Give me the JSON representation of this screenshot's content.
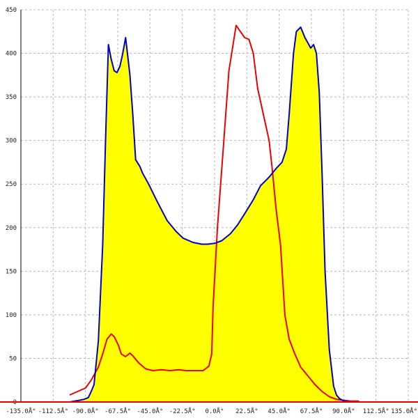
{
  "chart_data": {
    "type": "area",
    "title": "",
    "xlabel": "",
    "ylabel": "",
    "xlim": [
      -135,
      135
    ],
    "ylim": [
      0,
      450
    ],
    "grid": true,
    "x_ticks": [
      -135,
      -112.5,
      -90,
      -67.5,
      -45,
      -22.5,
      0,
      22.5,
      45,
      67.5,
      90,
      112.5,
      135
    ],
    "x_tick_labels": [
      "-135.0Å°",
      "-112.5Å°",
      "-90.0Å°",
      "-67.5Å°",
      "-45.0Å°",
      "-22.5Å°",
      "0.0Å°",
      "22.5Å°",
      "45.0Å°",
      "67.5Å°",
      "90.0Å°",
      "112.5Å°",
      "135.0Å°"
    ],
    "y_ticks": [
      0,
      50,
      100,
      150,
      200,
      250,
      300,
      350,
      400,
      450
    ],
    "y_tick_labels": [
      "0",
      "50",
      "100",
      "150",
      "200",
      "250",
      "300",
      "350",
      "400",
      "450"
    ],
    "fill_color": "#ffff00",
    "series": [
      {
        "color": "#0000cc",
        "filled": true,
        "x": [
          -101,
          -94,
          -91,
          -88,
          -86,
          -84,
          -81,
          -78,
          -76,
          -74,
          -72,
          -70,
          -68,
          -66,
          -64,
          -62,
          -59,
          -57,
          -55,
          -52,
          -50,
          -46,
          -40,
          -33,
          -27,
          -22,
          -15,
          -9,
          -5,
          0,
          5,
          11,
          16,
          21,
          27,
          32,
          38,
          43,
          47,
          50,
          52,
          55,
          57,
          60,
          63,
          65,
          67,
          69,
          71,
          73,
          75,
          77,
          80,
          83,
          85,
          87,
          89,
          91,
          95,
          101
        ],
        "y": [
          0,
          2,
          3,
          5,
          12,
          20,
          70,
          180,
          300,
          410,
          393,
          380,
          378,
          385,
          400,
          418,
          375,
          330,
          278,
          270,
          262,
          250,
          230,
          208,
          196,
          188,
          183,
          181,
          181,
          182,
          185,
          193,
          203,
          216,
          232,
          248,
          258,
          268,
          275,
          290,
          330,
          400,
          425,
          430,
          418,
          412,
          406,
          410,
          400,
          355,
          260,
          150,
          60,
          18,
          8,
          4,
          2,
          1,
          0,
          0
        ]
      },
      {
        "color": "#ee0000",
        "filled": false,
        "x": [
          -101,
          -90,
          -86,
          -81,
          -78,
          -75,
          -72,
          -70,
          -67,
          -65,
          -62,
          -59,
          -57,
          -53,
          -48,
          -43,
          -37,
          -31,
          -25,
          -20,
          -14,
          -8,
          -4,
          -2,
          -1,
          2,
          6,
          10,
          15,
          18,
          21,
          24,
          27,
          30,
          34,
          38,
          40,
          43,
          46,
          49,
          52,
          56,
          60,
          65,
          70,
          75,
          80,
          85,
          90,
          95,
          100,
          101
        ],
        "y": [
          8,
          16,
          25,
          40,
          55,
          72,
          78,
          75,
          65,
          55,
          52,
          56,
          53,
          45,
          38,
          36,
          37,
          36,
          37,
          36,
          36,
          36,
          41,
          55,
          110,
          200,
          290,
          380,
          432,
          425,
          418,
          416,
          400,
          360,
          330,
          300,
          270,
          220,
          180,
          100,
          72,
          55,
          40,
          30,
          20,
          12,
          6,
          3,
          2,
          1,
          1,
          0
        ]
      }
    ]
  }
}
